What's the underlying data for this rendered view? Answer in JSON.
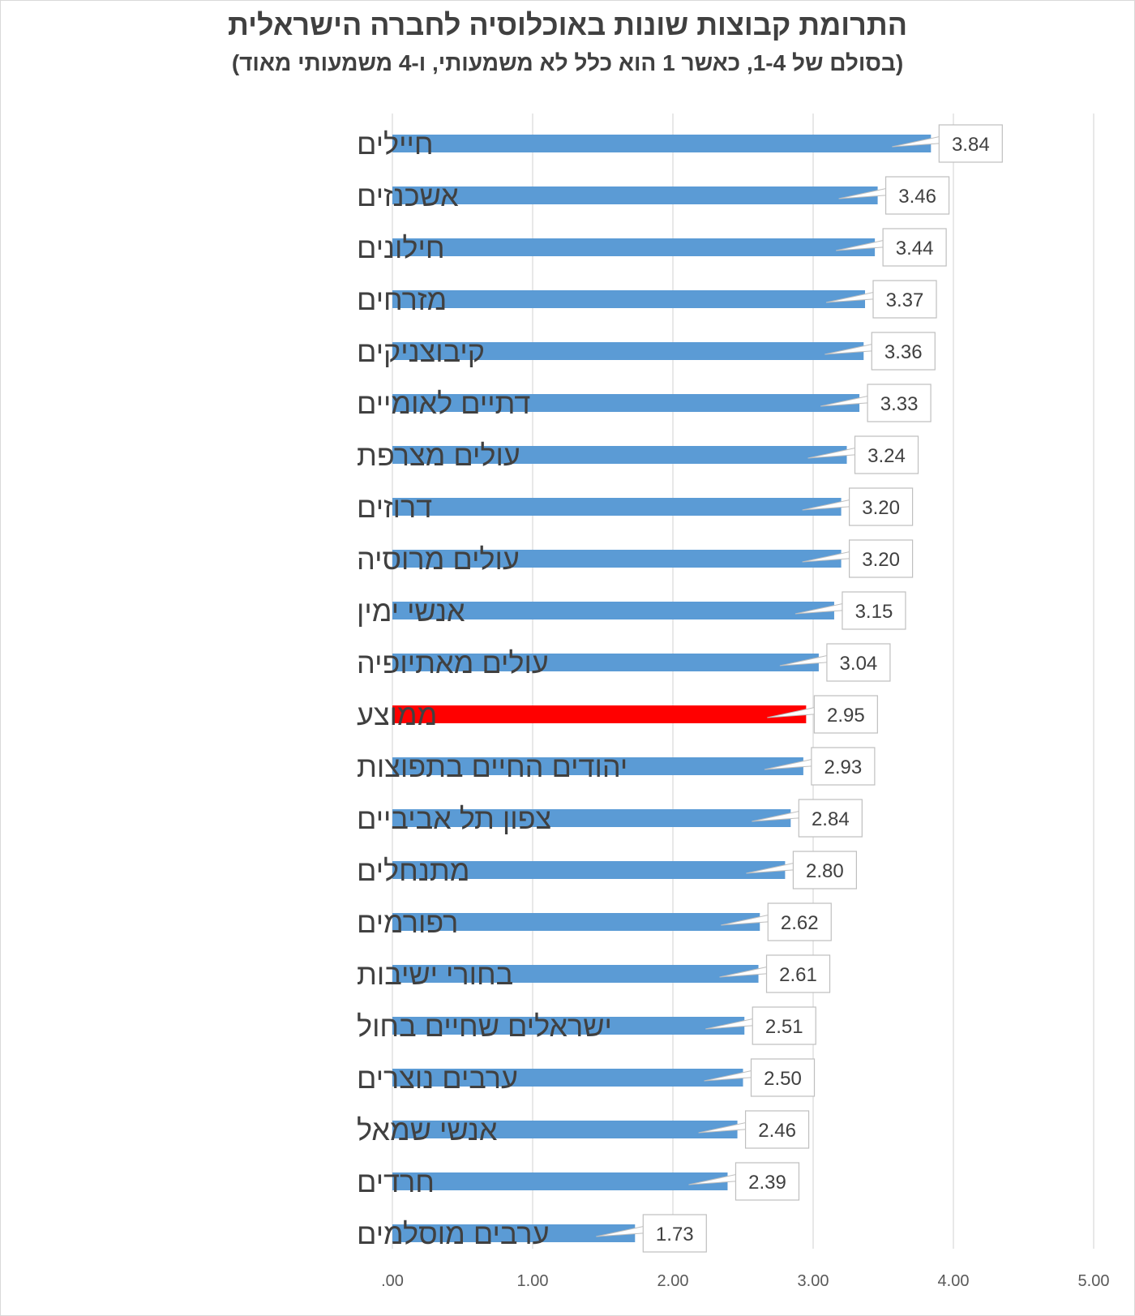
{
  "title": "התרומת קבוצות שונות באוכלוסיה לחברה הישראלית",
  "subtitle": "(בסולם של 1-4, כאשר 1 הוא כלל לא משמעותי, ו-4 משמעותי מאוד)",
  "chart_data": {
    "type": "bar",
    "orientation": "horizontal",
    "title": "התרומת קבוצות שונות באוכלוסיה לחברה הישראלית",
    "subtitle": "(בסולם של 1-4, כאשר 1 הוא כלל לא משמעותי, ו-4 משמעותי מאוד)",
    "categories": [
      "חיילים",
      "אשכנזים",
      "חילונים",
      "מזרחים",
      "קיבוצניקים",
      "דתיים לאומיים",
      "עולים מצרפת",
      "דרוזים",
      "עולים מרוסיה",
      "אנשי ימין",
      "עולים מאתיופיה",
      "ממוצע",
      "יהודים החיים בתפוצות",
      "צפון תל אביביים",
      "מתנחלים",
      "רפורמים",
      "בחורי ישיבות",
      "ישראלים שחיים בחול",
      "ערבים נוצרים",
      "אנשי שמאל",
      "חרדים",
      "ערבים מוסלמים"
    ],
    "values": [
      3.84,
      3.46,
      3.44,
      3.37,
      3.36,
      3.33,
      3.24,
      3.2,
      3.2,
      3.15,
      3.04,
      2.95,
      2.93,
      2.84,
      2.8,
      2.62,
      2.61,
      2.51,
      2.5,
      2.46,
      2.39,
      1.73
    ],
    "data_labels": [
      "3.84",
      "3.46",
      "3.44",
      "3.37",
      "3.36",
      "3.33",
      "3.24",
      "3.20",
      "3.20",
      "3.15",
      "3.04",
      "2.95",
      "2.93",
      "2.84",
      "2.80",
      "2.62",
      "2.61",
      "2.51",
      "2.50",
      "2.46",
      "2.39",
      "1.73"
    ],
    "xlim": [
      0,
      5
    ],
    "x_ticks": [
      0,
      1,
      2,
      3,
      4,
      5
    ],
    "x_tick_labels": [
      ".00",
      "1.00",
      "2.00",
      "3.00",
      "4.00",
      "5.00"
    ],
    "grid": "vertical",
    "legend": "none",
    "colors": {
      "bar": "#5b9bd5",
      "highlight": "#ff0000",
      "grid": "#d9d9d9",
      "text": "#404040"
    },
    "highlight_category": "ממוצע"
  }
}
